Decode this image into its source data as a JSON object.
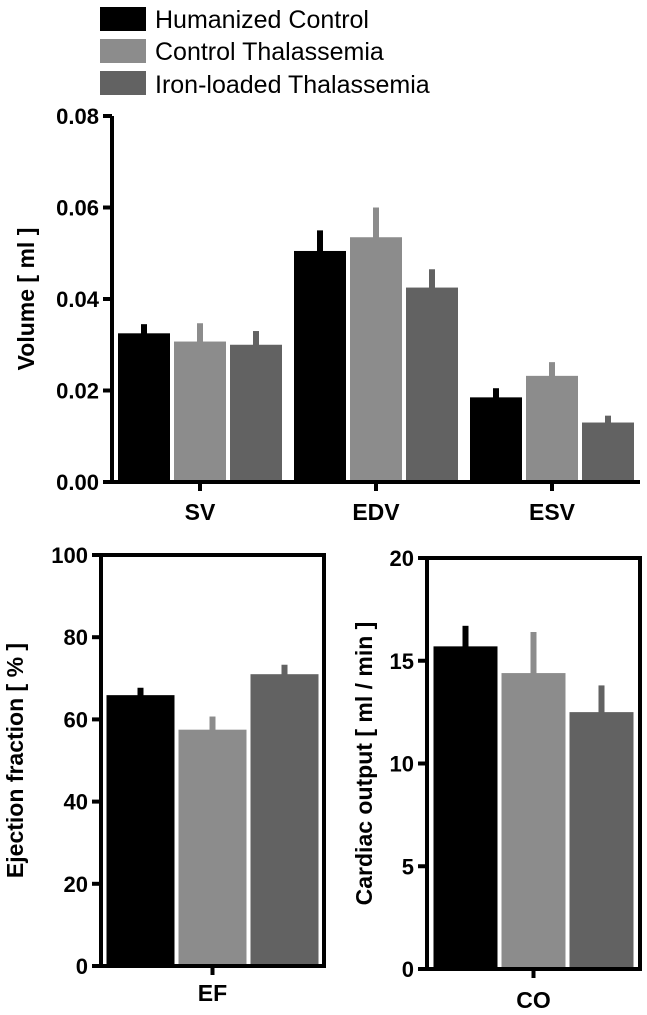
{
  "legend": [
    {
      "label": "Humanized Control",
      "color": "#000000"
    },
    {
      "label": "Control Thalassemia",
      "color": "#8c8c8c"
    },
    {
      "label": "Iron-loaded Thalassemia",
      "color": "#626262"
    }
  ],
  "chart_data": [
    {
      "type": "bar",
      "title": "",
      "ylabel": "Volume [ ml ]",
      "ylim": [
        0,
        0.08
      ],
      "yticks": [
        "0.00",
        "0.02",
        "0.04",
        "0.06",
        "0.08"
      ],
      "categories": [
        "SV",
        "EDV",
        "ESV"
      ],
      "series": [
        {
          "name": "Humanized Control",
          "values": [
            0.0325,
            0.0505,
            0.0185
          ],
          "errors": [
            0.002,
            0.0045,
            0.002
          ]
        },
        {
          "name": "Control Thalassemia",
          "values": [
            0.0307,
            0.0535,
            0.0232
          ],
          "errors": [
            0.004,
            0.0065,
            0.003
          ]
        },
        {
          "name": "Iron-loaded Thalassemia",
          "values": [
            0.03,
            0.0425,
            0.013
          ],
          "errors": [
            0.003,
            0.004,
            0.0015
          ]
        }
      ],
      "grid": false
    },
    {
      "type": "bar",
      "title": "",
      "ylabel": "Ejection fraction [ % ]",
      "ylim": [
        0,
        100
      ],
      "yticks": [
        "0",
        "20",
        "40",
        "60",
        "80",
        "100"
      ],
      "categories": [
        "EF"
      ],
      "series": [
        {
          "name": "Humanized Control",
          "values": [
            65.9
          ],
          "errors": [
            1.8
          ]
        },
        {
          "name": "Control Thalassemia",
          "values": [
            57.5
          ],
          "errors": [
            3.2
          ]
        },
        {
          "name": "Iron-loaded Thalassemia",
          "values": [
            71.0
          ],
          "errors": [
            2.3
          ]
        }
      ],
      "grid": false
    },
    {
      "type": "bar",
      "title": "",
      "ylabel": "Cardiac output [ ml / min ]",
      "ylim": [
        0,
        20
      ],
      "yticks": [
        "0",
        "5",
        "10",
        "15",
        "20"
      ],
      "categories": [
        "CO"
      ],
      "series": [
        {
          "name": "Humanized Control",
          "values": [
            15.7
          ],
          "errors": [
            1.0
          ]
        },
        {
          "name": "Control Thalassemia",
          "values": [
            14.4
          ],
          "errors": [
            2.0
          ]
        },
        {
          "name": "Iron-loaded Thalassemia",
          "values": [
            12.5
          ],
          "errors": [
            1.3
          ]
        }
      ],
      "grid": false
    }
  ]
}
